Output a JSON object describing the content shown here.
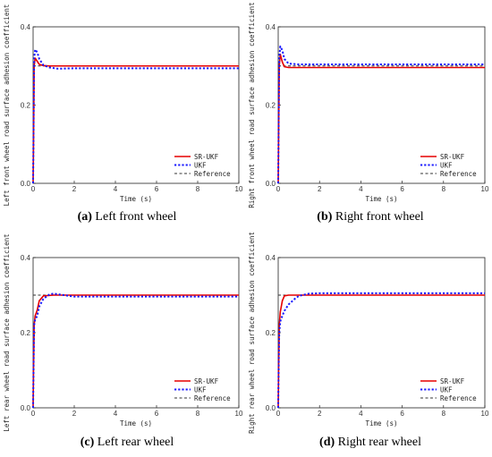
{
  "colors": {
    "sr_ukf": "#e60000",
    "ukf": "#1a1aff",
    "reference": "#333333"
  },
  "chart_data": [
    {
      "type": "line",
      "caption_label": "(a)",
      "caption_text": "Left front wheel",
      "xlabel": "Time (s)",
      "ylabel": "Left front wheel road surface adhesion coefficient",
      "xlim": [
        0,
        10
      ],
      "ylim": [
        0,
        0.4
      ],
      "xticks": [
        "0",
        "2",
        "4",
        "6",
        "8",
        "10"
      ],
      "yticks": [
        "0.0",
        "0.2",
        "0.4"
      ],
      "legend_position": "bottom-right",
      "series": [
        {
          "name": "SR-UKF",
          "style": "solid",
          "x": [
            0,
            0.02,
            0.05,
            0.1,
            0.2,
            0.3,
            0.5,
            0.8,
            1.0,
            2,
            4,
            6,
            8,
            10
          ],
          "y": [
            0,
            0.1,
            0.3,
            0.32,
            0.312,
            0.304,
            0.301,
            0.3,
            0.3,
            0.3,
            0.3,
            0.3,
            0.3,
            0.3
          ]
        },
        {
          "name": "UKF",
          "style": "dotted",
          "x": [
            0,
            0.02,
            0.05,
            0.1,
            0.2,
            0.3,
            0.5,
            0.8,
            1.2,
            2,
            4,
            6,
            8,
            10
          ],
          "y": [
            0,
            0.12,
            0.32,
            0.342,
            0.335,
            0.318,
            0.302,
            0.296,
            0.293,
            0.294,
            0.294,
            0.294,
            0.294,
            0.294
          ]
        },
        {
          "name": "Reference",
          "style": "dashed",
          "x": [
            0,
            10
          ],
          "y": [
            0.3,
            0.3
          ]
        }
      ]
    },
    {
      "type": "line",
      "caption_label": "(b)",
      "caption_text": "Right front wheel",
      "xlabel": "Time (s)",
      "ylabel": "Right front wheel road surface adhesion coefficient",
      "xlim": [
        0,
        10
      ],
      "ylim": [
        0,
        0.4
      ],
      "xticks": [
        "0",
        "2",
        "4",
        "6",
        "8",
        "10"
      ],
      "yticks": [
        "0.0",
        "0.2",
        "0.4"
      ],
      "legend_position": "bottom-right",
      "series": [
        {
          "name": "SR-UKF",
          "style": "solid",
          "x": [
            0,
            0.02,
            0.05,
            0.1,
            0.2,
            0.3,
            0.5,
            1.0,
            2,
            4,
            6,
            8,
            10
          ],
          "y": [
            0,
            0.12,
            0.3,
            0.33,
            0.31,
            0.298,
            0.296,
            0.296,
            0.296,
            0.296,
            0.296,
            0.296,
            0.296
          ]
        },
        {
          "name": "UKF",
          "style": "dotted",
          "x": [
            0,
            0.02,
            0.05,
            0.1,
            0.2,
            0.3,
            0.5,
            1.0,
            2,
            4,
            6,
            8,
            10
          ],
          "y": [
            0,
            0.14,
            0.32,
            0.35,
            0.34,
            0.318,
            0.306,
            0.304,
            0.304,
            0.304,
            0.304,
            0.304,
            0.304
          ]
        },
        {
          "name": "Reference",
          "style": "dashed",
          "x": [
            0,
            10
          ],
          "y": [
            0.3,
            0.3
          ]
        }
      ]
    },
    {
      "type": "line",
      "caption_label": "(c)",
      "caption_text": "Left rear wheel",
      "xlabel": "Time (s)",
      "ylabel": "Left rear wheel road surface adhesion coefficient",
      "xlim": [
        0,
        10
      ],
      "ylim": [
        0,
        0.4
      ],
      "xticks": [
        "0",
        "2",
        "4",
        "6",
        "8",
        "10"
      ],
      "yticks": [
        "0.0",
        "0.2",
        "0.4"
      ],
      "legend_position": "bottom-right",
      "series": [
        {
          "name": "SR-UKF",
          "style": "solid",
          "x": [
            0,
            0.02,
            0.05,
            0.1,
            0.2,
            0.3,
            0.5,
            1.0,
            2,
            4,
            6,
            8,
            10
          ],
          "y": [
            0,
            0.1,
            0.22,
            0.245,
            0.26,
            0.285,
            0.298,
            0.3,
            0.3,
            0.3,
            0.3,
            0.3,
            0.3
          ]
        },
        {
          "name": "UKF",
          "style": "dotted",
          "x": [
            0,
            0.02,
            0.05,
            0.1,
            0.2,
            0.3,
            0.5,
            0.8,
            1.0,
            1.5,
            2,
            4,
            6,
            8,
            10
          ],
          "y": [
            0,
            0.1,
            0.22,
            0.235,
            0.245,
            0.27,
            0.29,
            0.302,
            0.304,
            0.3,
            0.296,
            0.296,
            0.296,
            0.296,
            0.296
          ]
        },
        {
          "name": "Reference",
          "style": "dashed",
          "x": [
            0,
            10
          ],
          "y": [
            0.3,
            0.3
          ]
        }
      ]
    },
    {
      "type": "line",
      "caption_label": "(d)",
      "caption_text": "Right rear wheel",
      "xlabel": "Time (s)",
      "ylabel": "Right rear wheel road surface adhesion coefficient",
      "xlim": [
        0,
        10
      ],
      "ylim": [
        0,
        0.4
      ],
      "xticks": [
        "0",
        "2",
        "4",
        "6",
        "8",
        "10"
      ],
      "yticks": [
        "0.0",
        "0.2",
        "0.4"
      ],
      "legend_position": "bottom-right",
      "series": [
        {
          "name": "SR-UKF",
          "style": "solid",
          "x": [
            0,
            0.02,
            0.05,
            0.1,
            0.2,
            0.3,
            0.5,
            1.0,
            2,
            4,
            6,
            8,
            10
          ],
          "y": [
            0,
            0.1,
            0.22,
            0.255,
            0.285,
            0.298,
            0.3,
            0.3,
            0.3,
            0.3,
            0.3,
            0.3,
            0.3
          ]
        },
        {
          "name": "UKF",
          "style": "dotted",
          "x": [
            0,
            0.02,
            0.05,
            0.1,
            0.2,
            0.3,
            0.5,
            0.8,
            1.0,
            1.5,
            2,
            4,
            6,
            8,
            10
          ],
          "y": [
            0,
            0.1,
            0.2,
            0.23,
            0.245,
            0.258,
            0.275,
            0.29,
            0.298,
            0.304,
            0.305,
            0.305,
            0.305,
            0.305,
            0.305
          ]
        },
        {
          "name": "Reference",
          "style": "dashed",
          "x": [
            0,
            10
          ],
          "y": [
            0.3,
            0.3
          ]
        }
      ]
    }
  ]
}
